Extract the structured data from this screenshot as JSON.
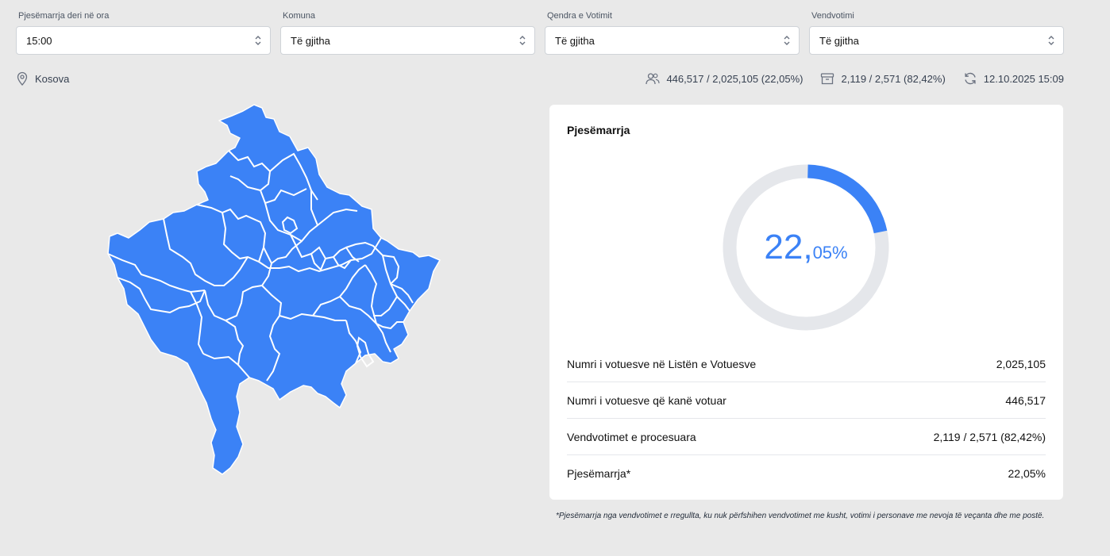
{
  "filters": [
    {
      "label": "Pjesëmarrja deri në ora",
      "value": "15:00"
    },
    {
      "label": "Komuna",
      "value": "Të gjitha"
    },
    {
      "label": "Qendra e Votimit",
      "value": "Të gjitha"
    },
    {
      "label": "Vendvotimi",
      "value": "Të gjitha"
    }
  ],
  "location": {
    "name": "Kosova",
    "icon": "map-pin-icon"
  },
  "stats": {
    "voters": {
      "text": "446,517 / 2,025,105 (22,05%)",
      "icon": "users-icon"
    },
    "stations": {
      "text": "2,119 / 2,571 (82,42%)",
      "icon": "ballot-box-icon"
    },
    "updated": {
      "text": "12.10.2025 15:09",
      "icon": "refresh-icon"
    }
  },
  "card": {
    "title": "Pjesëmarrja",
    "turnout_main": "22,",
    "turnout_decimal": "05%",
    "turnout_fraction": 0.2205,
    "rows": [
      {
        "label": "Numri i votuesve në Listën e Votuesve",
        "value": "2,025,105"
      },
      {
        "label": "Numri i votuesve që kanë votuar",
        "value": "446,517"
      },
      {
        "label": "Vendvotimet e procesuara",
        "value": "2,119 / 2,571 (82,42%)"
      },
      {
        "label": "Pjesëmarrja*",
        "value": "22,05%"
      }
    ]
  },
  "footnote": "*Pjesëmarrja nga vendvotimet e rregullta, ku nuk përfshihen vendvotimet me kusht, votimi i personave me nevoja të veçanta dhe me postë.",
  "colors": {
    "accent": "#3b82f6",
    "track": "#e5e7eb",
    "background": "#e9e9e9"
  }
}
